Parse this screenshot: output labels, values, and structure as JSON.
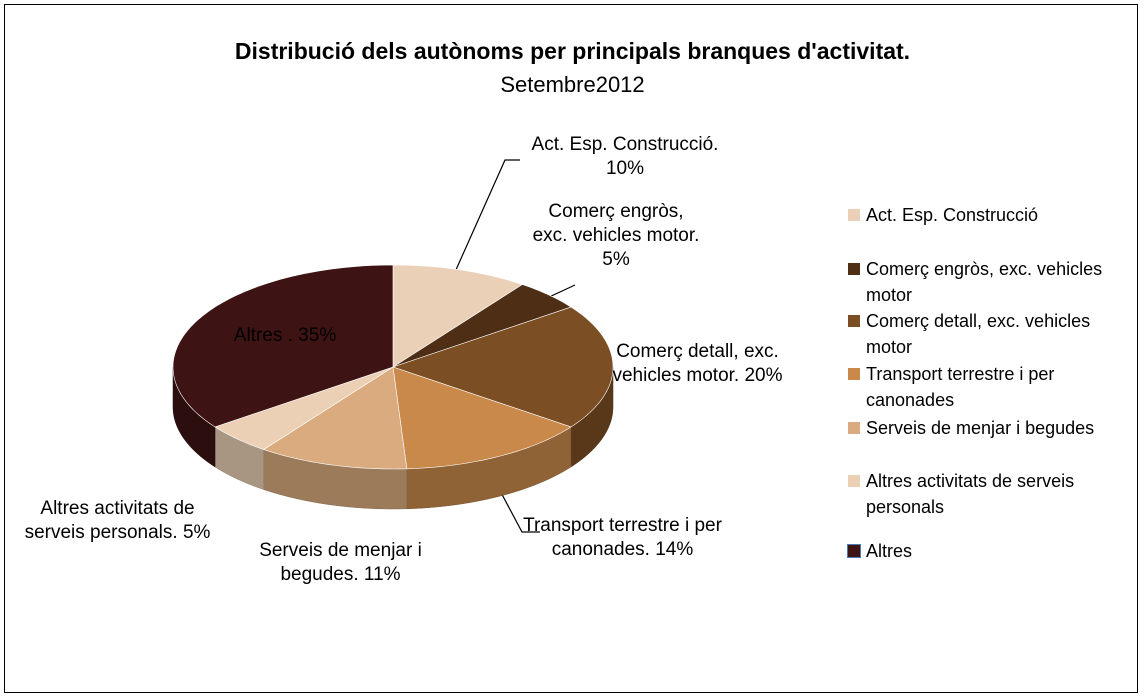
{
  "chart_data": {
    "type": "pie",
    "title": "Distribució dels autònoms per principals branques d'activitat.",
    "subtitle": "Setembre2012",
    "categories": [
      "Act. Esp. Construcció",
      "Comerç engròs, exc. vehicles motor",
      "Comerç detall, exc. vehicles motor",
      "Transport terrestre i per canonades",
      "Serveis de menjar i begudes",
      "Altres activitats de serveis personals",
      "Altres"
    ],
    "values": [
      10,
      5,
      20,
      14,
      11,
      5,
      35
    ],
    "value_labels": [
      "Act. Esp. Construcció. 10%",
      "Comerç engròs, exc. vehicles motor. 5%",
      "Comerç detall, exc. vehicles motor. 20%",
      "Transport terrestre i per canonades. 14%",
      "Serveis de menjar i begudes. 11%",
      "Altres activitats de serveis personals. 5%",
      "Altres . 35%"
    ],
    "colors": [
      "#ead0b6",
      "#4e2e15",
      "#7b4e23",
      "#c8894b",
      "#d9ab7f",
      "#ebd0b5",
      "#3d1313"
    ],
    "legend": "right"
  }
}
